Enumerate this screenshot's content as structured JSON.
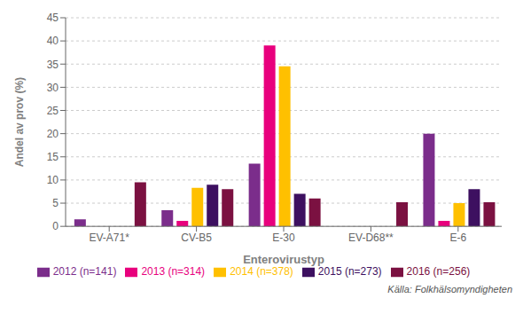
{
  "chart_data": {
    "type": "bar",
    "categories": [
      "EV-A71*",
      "CV-B5",
      "E-30",
      "EV-D68**",
      "E-6"
    ],
    "series": [
      {
        "name": "2012 (n=141)",
        "color": "#7B2D8B",
        "values": [
          1.5,
          3.5,
          13.5,
          0,
          20
        ]
      },
      {
        "name": "2013 (n=314)",
        "color": "#E8007D",
        "values": [
          0,
          1.2,
          39,
          0,
          1.2
        ]
      },
      {
        "name": "2014 (n=378)",
        "color": "#FFC000",
        "values": [
          0,
          8.3,
          34.5,
          0,
          5
        ]
      },
      {
        "name": "2015 (n=273)",
        "color": "#3D1060",
        "values": [
          0,
          9,
          7,
          0,
          8
        ]
      },
      {
        "name": "2016 (n=256)",
        "color": "#7B1141",
        "values": [
          9.5,
          8,
          6,
          5.2,
          5.2
        ]
      }
    ],
    "ylabel": "Andel av prov (%)",
    "xlabel": "Enterovirustyp",
    "ylim": [
      0,
      45
    ],
    "yticks": [
      0,
      5,
      10,
      15,
      20,
      25,
      30,
      35,
      40,
      45
    ],
    "grid": true,
    "legend": "bottom",
    "annotations": [
      "Källa: Folkhälsomyndigheten"
    ]
  }
}
